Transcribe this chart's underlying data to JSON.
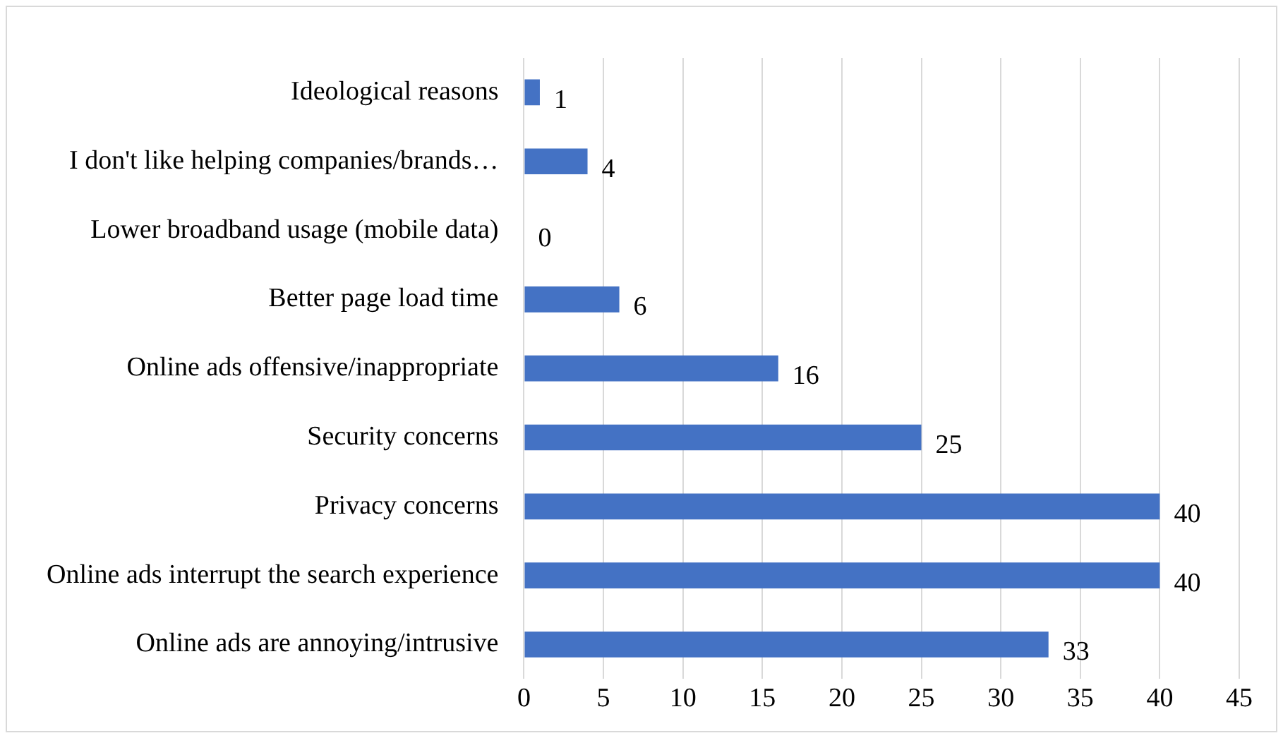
{
  "chart_data": {
    "type": "bar",
    "orientation": "horizontal",
    "categories": [
      "Ideological reasons",
      "I don't like helping companies/brands…",
      "Lower broadband usage (mobile data)",
      "Better page load time",
      "Online ads offensive/inappropriate",
      "Security concerns",
      "Privacy concerns",
      "Online ads interrupt the search experience",
      "Online ads are annoying/intrusive"
    ],
    "values": [
      1,
      4,
      0,
      6,
      16,
      25,
      40,
      40,
      33
    ],
    "color": "#4472c4",
    "xlim": [
      0,
      45
    ],
    "xticks": [
      0,
      5,
      10,
      15,
      20,
      25,
      30,
      35,
      40,
      45
    ],
    "grid": "x",
    "data_labels": true,
    "legend": false
  }
}
